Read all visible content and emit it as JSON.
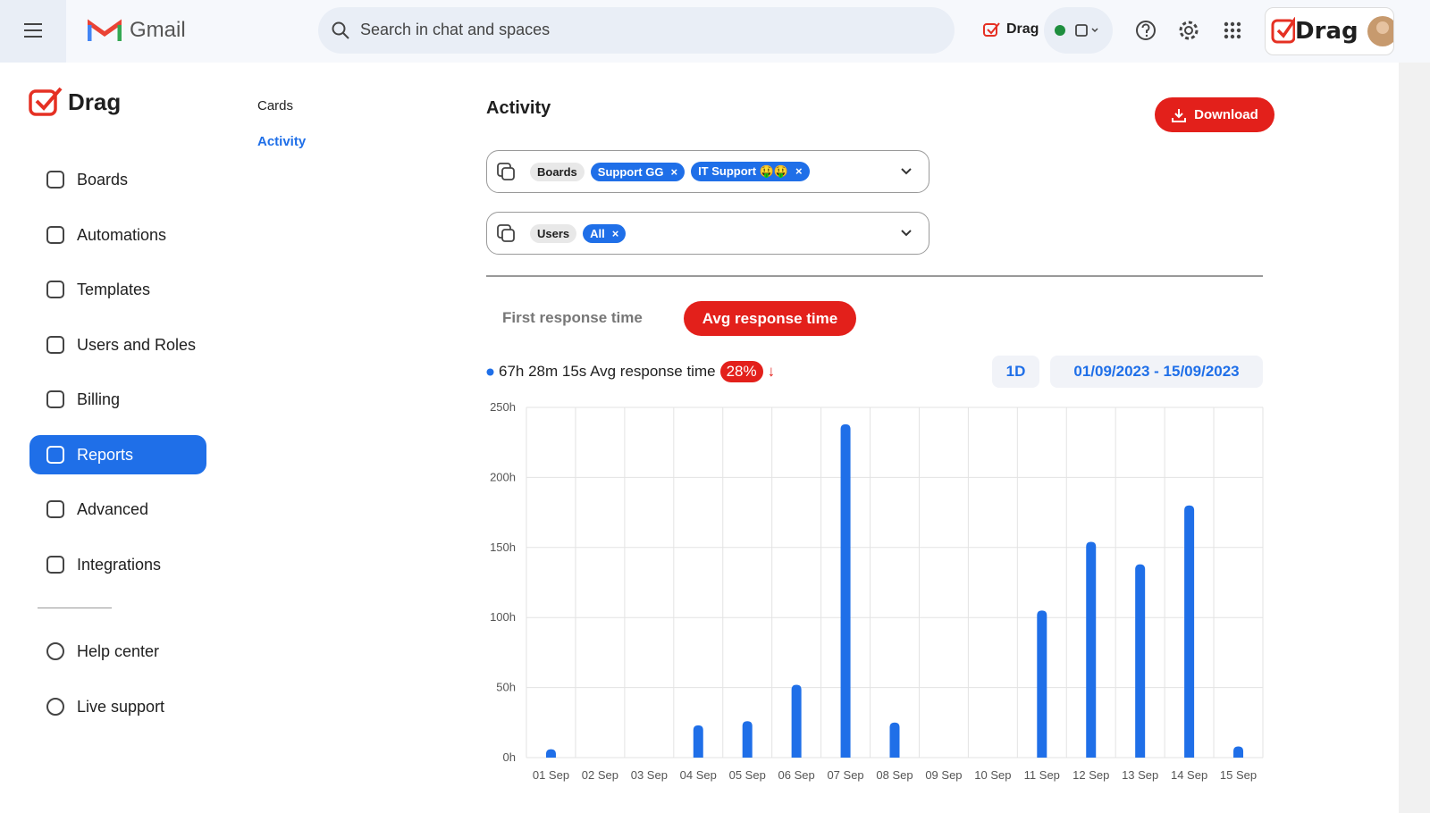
{
  "header": {
    "app_name": "Gmail",
    "search_placeholder": "Search in chat and spaces",
    "drag_label": "Drag",
    "brand": "Drag"
  },
  "sidebar": {
    "logo": "Drag",
    "nav": [
      "Boards",
      "Automations",
      "Templates",
      "Users and Roles",
      "Billing",
      "Reports",
      "Advanced",
      "Integrations"
    ],
    "support": [
      "Help center",
      "Live support"
    ]
  },
  "subnav": [
    "Cards",
    "Activity"
  ],
  "main": {
    "title": "Activity",
    "download": "Download",
    "filters": [
      {
        "label": "Boards",
        "chips": [
          "Support GG",
          "IT Support 🤑🤑"
        ]
      },
      {
        "label": "Users",
        "chips": [
          "All"
        ]
      }
    ],
    "tabs": [
      "First response time",
      "Avg response time"
    ],
    "summary": {
      "text": "67h 28m 15s Avg response time",
      "badge": "28%",
      "trend": "↓"
    },
    "interval": "1D",
    "date_range": "01/09/2023 - 15/09/2023"
  },
  "chart_data": {
    "type": "bar",
    "categories": [
      "01 Sep",
      "02 Sep",
      "03 Sep",
      "04 Sep",
      "05 Sep",
      "06 Sep",
      "07 Sep",
      "08 Sep",
      "09 Sep",
      "10 Sep",
      "11 Sep",
      "12 Sep",
      "13 Sep",
      "14 Sep",
      "15 Sep"
    ],
    "values": [
      6,
      0,
      0,
      23,
      26,
      52,
      238,
      25,
      0,
      0,
      105,
      154,
      138,
      180,
      8
    ],
    "color": "#1f6fe8",
    "ylim": [
      0,
      250
    ],
    "yticks": [
      {
        "value": 0,
        "label": "0h"
      },
      {
        "value": 50,
        "label": "50h"
      },
      {
        "value": 100,
        "label": "100h"
      },
      {
        "value": 150,
        "label": "150h"
      },
      {
        "value": 200,
        "label": "200h"
      },
      {
        "value": 250,
        "label": "250h"
      }
    ],
    "grid": true
  }
}
